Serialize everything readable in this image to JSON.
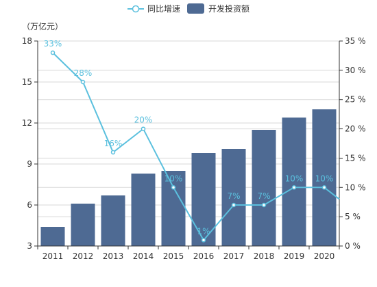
{
  "chart_data": {
    "type": "bar",
    "categories": [
      "2011",
      "2012",
      "2013",
      "2014",
      "2015",
      "2016",
      "2017",
      "2018",
      "2019",
      "2020"
    ],
    "y_unit_label": "（万亿元）",
    "ylim": [
      3,
      18
    ],
    "yticks": [
      3,
      6,
      9,
      12,
      15,
      18
    ],
    "y2lim": [
      0,
      35
    ],
    "y2ticks": [
      0,
      5,
      10,
      15,
      20,
      25,
      30,
      35
    ],
    "y2_tick_suffix": " %",
    "grid": true,
    "legend_position": "top-center",
    "series": [
      {
        "name": "同比增速",
        "type": "line",
        "axis": "right",
        "values": [
          33,
          28,
          16,
          20,
          10,
          1,
          7,
          7,
          10,
          10
        ],
        "labels": [
          "33%",
          "28%",
          "16%",
          "20%",
          "10%",
          "1%",
          "7%",
          "7%",
          "10%",
          "10%"
        ],
        "color": "#5BC0DE",
        "trailing_value": 8
      },
      {
        "name": "开发投资额",
        "type": "bar",
        "axis": "left",
        "values": [
          4.4,
          6.1,
          6.7,
          8.3,
          8.5,
          9.8,
          10.1,
          11.5,
          12.4,
          13.0
        ],
        "color": "#4E6A93"
      }
    ]
  }
}
